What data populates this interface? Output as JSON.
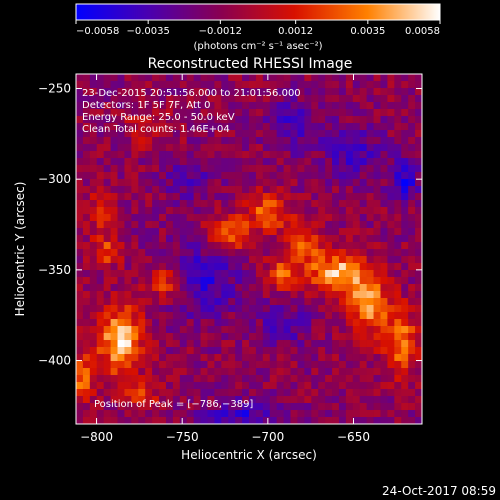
{
  "chart_data": {
    "type": "heatmap",
    "title": "Reconstructed RHESSI Image",
    "xlabel": "Heliocentric X (arcsec)",
    "ylabel": "Heliocentric Y (arcsec)",
    "xlim": [
      -812,
      -610
    ],
    "ylim": [
      -435,
      -242
    ],
    "x_ticks": [
      -800,
      -750,
      -700,
      -650
    ],
    "y_ticks": [
      -250,
      -300,
      -350,
      -400
    ],
    "x_tick_labels": [
      "−800",
      "−750",
      "−700",
      "−650"
    ],
    "y_tick_labels": [
      "−250",
      "−300",
      "−350",
      "−400"
    ],
    "colorbar": {
      "range": [
        -0.0058,
        0.0058
      ],
      "ticks": [
        -0.0058,
        -0.0035,
        -0.0012,
        0.0012,
        0.0035,
        0.0058
      ],
      "tick_labels": [
        "−0.0058",
        "−0.0035",
        "−0.0012",
        "0.0012",
        "0.0035",
        "0.0058"
      ],
      "label": "(photons cm⁻² s⁻¹ asec⁻²)",
      "colors": [
        "#0000ff",
        "#4a00b0",
        "#8a0050",
        "#d81000",
        "#ff8000",
        "#ffffff"
      ]
    },
    "annotations": [
      "23-Dec-2015 20:51:56.000 to 21:01:56.000",
      "Detectors: 1F 5F 7F, Att 0",
      "Energy Range: 25.0 - 50.0 keV",
      "Clean     Total counts: 1.46E+04"
    ],
    "peak": {
      "x": -786,
      "y": -389,
      "label": "Position of Peak = [−786,−389]"
    },
    "sources": [
      {
        "x": -722,
        "y": -330,
        "amp": 0.0042,
        "sx": 9,
        "sy": 7
      },
      {
        "x": -700,
        "y": -318,
        "amp": 0.004,
        "sx": 8,
        "sy": 7
      },
      {
        "x": -680,
        "y": -335,
        "amp": 0.004,
        "sx": 7,
        "sy": 9
      },
      {
        "x": -660,
        "y": -352,
        "amp": 0.0058,
        "sx": 11,
        "sy": 8
      },
      {
        "x": -642,
        "y": -368,
        "amp": 0.005,
        "sx": 9,
        "sy": 11
      },
      {
        "x": -622,
        "y": -390,
        "amp": 0.0042,
        "sx": 8,
        "sy": 13
      },
      {
        "x": -692,
        "y": -352,
        "amp": 0.004,
        "sx": 6,
        "sy": 6
      },
      {
        "x": -760,
        "y": -357,
        "amp": 0.0038,
        "sx": 7,
        "sy": 6
      },
      {
        "x": -795,
        "y": -340,
        "amp": 0.0032,
        "sx": 6,
        "sy": 6
      },
      {
        "x": -797,
        "y": -318,
        "amp": 0.003,
        "sx": 5,
        "sy": 8
      },
      {
        "x": -786,
        "y": -389,
        "amp": 0.0062,
        "sx": 9,
        "sy": 13
      },
      {
        "x": -810,
        "y": -410,
        "amp": 0.004,
        "sx": 6,
        "sy": 10
      },
      {
        "x": -770,
        "y": -272,
        "amp": 0.0022,
        "sx": 9,
        "sy": 7
      },
      {
        "x": -775,
        "y": -420,
        "amp": 0.003,
        "sx": 8,
        "sy": 5
      }
    ],
    "negatives": [
      {
        "x": -738,
        "y": -355,
        "amp": -0.003,
        "sx": 14,
        "sy": 14
      },
      {
        "x": -690,
        "y": -380,
        "amp": -0.0022,
        "sx": 10,
        "sy": 8
      },
      {
        "x": -715,
        "y": -430,
        "amp": -0.0028,
        "sx": 16,
        "sy": 6
      },
      {
        "x": -650,
        "y": -285,
        "amp": -0.0025,
        "sx": 12,
        "sy": 10
      },
      {
        "x": -685,
        "y": -270,
        "amp": -0.0024,
        "sx": 10,
        "sy": 10
      },
      {
        "x": -745,
        "y": -300,
        "amp": -0.002,
        "sx": 10,
        "sy": 8
      },
      {
        "x": -620,
        "y": -300,
        "amp": -0.0035,
        "sx": 6,
        "sy": 8
      }
    ]
  },
  "footer": {
    "date": "24-Oct-2017 08:59"
  }
}
